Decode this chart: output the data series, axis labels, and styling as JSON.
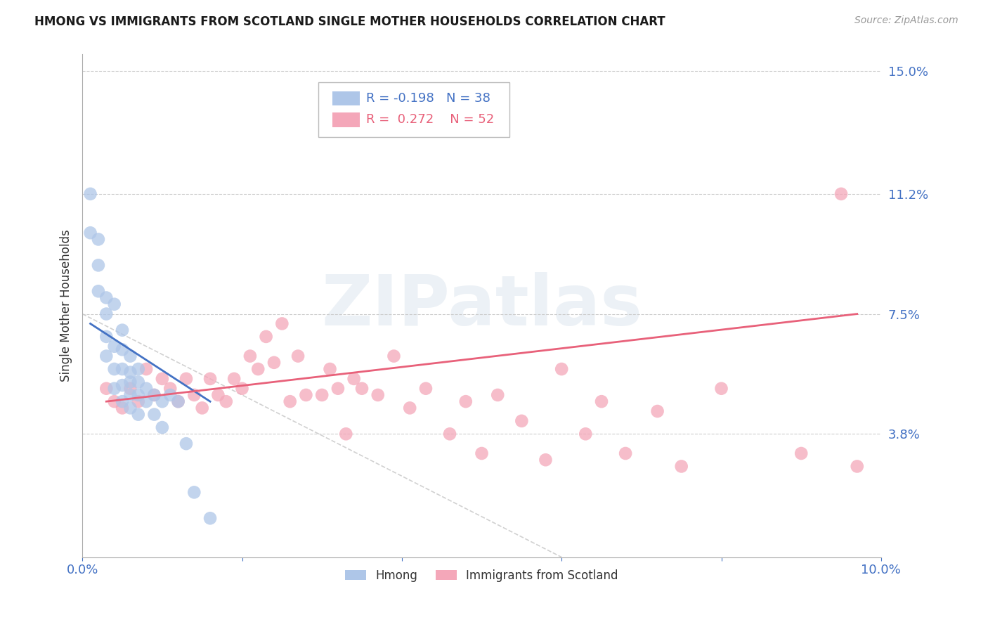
{
  "title": "HMONG VS IMMIGRANTS FROM SCOTLAND SINGLE MOTHER HOUSEHOLDS CORRELATION CHART",
  "source": "Source: ZipAtlas.com",
  "ylabel": "Single Mother Households",
  "xlim": [
    0.0,
    0.1
  ],
  "ylim": [
    0.0,
    0.155
  ],
  "yticks": [
    0.038,
    0.075,
    0.112,
    0.15
  ],
  "ytick_labels": [
    "3.8%",
    "7.5%",
    "11.2%",
    "15.0%"
  ],
  "xticks": [
    0.0,
    0.02,
    0.04,
    0.06,
    0.08,
    0.1
  ],
  "xtick_labels": [
    "0.0%",
    "",
    "",
    "",
    "",
    "10.0%"
  ],
  "legend_R1": "-0.198",
  "legend_N1": "38",
  "legend_R2": "0.272",
  "legend_N2": "52",
  "label1": "Hmong",
  "label2": "Immigrants from Scotland",
  "color1": "#aec6e8",
  "color2": "#f4a7b9",
  "line_color1": "#4472c4",
  "line_color2": "#e8617a",
  "dashed_color": "#cccccc",
  "watermark": "ZIPatlas",
  "title_color": "#1a1a1a",
  "tick_color": "#4472c4",
  "hmong_x": [
    0.001,
    0.001,
    0.002,
    0.002,
    0.002,
    0.003,
    0.003,
    0.003,
    0.003,
    0.004,
    0.004,
    0.004,
    0.004,
    0.005,
    0.005,
    0.005,
    0.005,
    0.005,
    0.006,
    0.006,
    0.006,
    0.006,
    0.006,
    0.007,
    0.007,
    0.007,
    0.007,
    0.008,
    0.008,
    0.009,
    0.009,
    0.01,
    0.01,
    0.011,
    0.012,
    0.013,
    0.014,
    0.016
  ],
  "hmong_y": [
    0.112,
    0.1,
    0.098,
    0.09,
    0.082,
    0.08,
    0.075,
    0.068,
    0.062,
    0.078,
    0.065,
    0.058,
    0.052,
    0.07,
    0.064,
    0.058,
    0.053,
    0.048,
    0.062,
    0.057,
    0.054,
    0.05,
    0.046,
    0.058,
    0.054,
    0.05,
    0.044,
    0.052,
    0.048,
    0.05,
    0.044,
    0.048,
    0.04,
    0.05,
    0.048,
    0.035,
    0.02,
    0.012
  ],
  "scotland_x": [
    0.003,
    0.004,
    0.005,
    0.006,
    0.007,
    0.008,
    0.009,
    0.01,
    0.011,
    0.012,
    0.013,
    0.014,
    0.015,
    0.016,
    0.017,
    0.018,
    0.019,
    0.02,
    0.021,
    0.022,
    0.023,
    0.024,
    0.025,
    0.026,
    0.027,
    0.028,
    0.03,
    0.031,
    0.032,
    0.033,
    0.034,
    0.035,
    0.037,
    0.039,
    0.041,
    0.043,
    0.046,
    0.048,
    0.05,
    0.052,
    0.055,
    0.058,
    0.06,
    0.063,
    0.065,
    0.068,
    0.072,
    0.075,
    0.08,
    0.09,
    0.095,
    0.097
  ],
  "scotland_y": [
    0.052,
    0.048,
    0.046,
    0.052,
    0.048,
    0.058,
    0.05,
    0.055,
    0.052,
    0.048,
    0.055,
    0.05,
    0.046,
    0.055,
    0.05,
    0.048,
    0.055,
    0.052,
    0.062,
    0.058,
    0.068,
    0.06,
    0.072,
    0.048,
    0.062,
    0.05,
    0.05,
    0.058,
    0.052,
    0.038,
    0.055,
    0.052,
    0.05,
    0.062,
    0.046,
    0.052,
    0.038,
    0.048,
    0.032,
    0.05,
    0.042,
    0.03,
    0.058,
    0.038,
    0.048,
    0.032,
    0.045,
    0.028,
    0.052,
    0.032,
    0.112,
    0.028
  ],
  "hmong_line_x": [
    0.001,
    0.016
  ],
  "hmong_line_y": [
    0.072,
    0.048
  ],
  "scotland_line_x": [
    0.003,
    0.097
  ],
  "scotland_line_y": [
    0.048,
    0.075
  ],
  "dash_line_x": [
    0.0,
    0.06
  ],
  "dash_line_y": [
    0.075,
    0.0
  ]
}
